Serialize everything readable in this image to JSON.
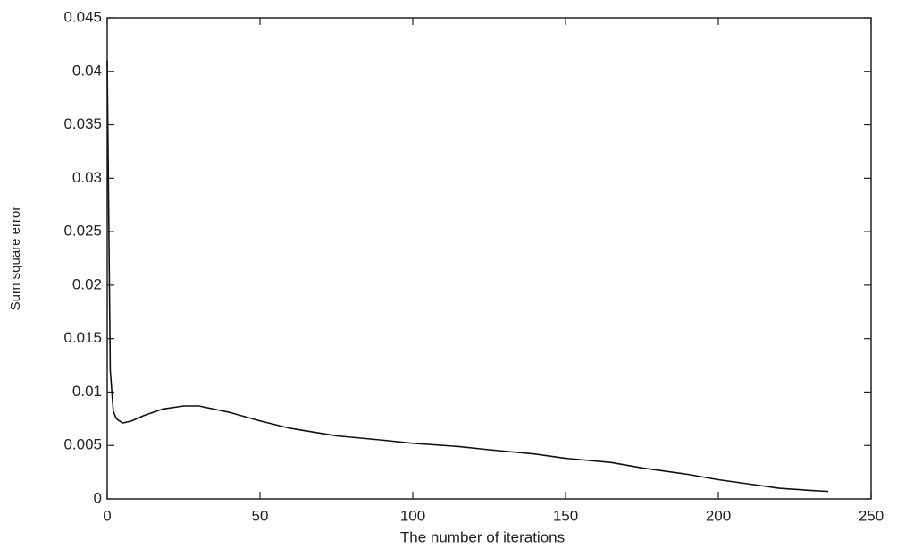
{
  "chart_data": {
    "type": "line",
    "x_label": "The number of iterations",
    "y_label": "Sum square error",
    "x": [
      0,
      1,
      2,
      3,
      5,
      8,
      12,
      18,
      25,
      30,
      40,
      50,
      60,
      75,
      90,
      100,
      115,
      125,
      140,
      150,
      165,
      175,
      190,
      200,
      210,
      220,
      230,
      236
    ],
    "values": [
      0.041,
      0.012,
      0.0082,
      0.0075,
      0.0071,
      0.0073,
      0.0078,
      0.0084,
      0.0087,
      0.0087,
      0.0081,
      0.0073,
      0.0066,
      0.0059,
      0.0055,
      0.0052,
      0.0049,
      0.0046,
      0.0042,
      0.0038,
      0.0034,
      0.0029,
      0.0023,
      0.0018,
      0.0014,
      0.001,
      0.0008,
      0.0007
    ],
    "color": "#111111",
    "xlim": [
      0,
      250
    ],
    "xticks": [
      0,
      50,
      100,
      150,
      200,
      250
    ],
    "ylim": [
      0,
      0.045
    ],
    "yticks": [
      0,
      0.005,
      0.01,
      0.015,
      0.02,
      0.025,
      0.03,
      0.035,
      0.04,
      0.045
    ],
    "grid": false
  }
}
